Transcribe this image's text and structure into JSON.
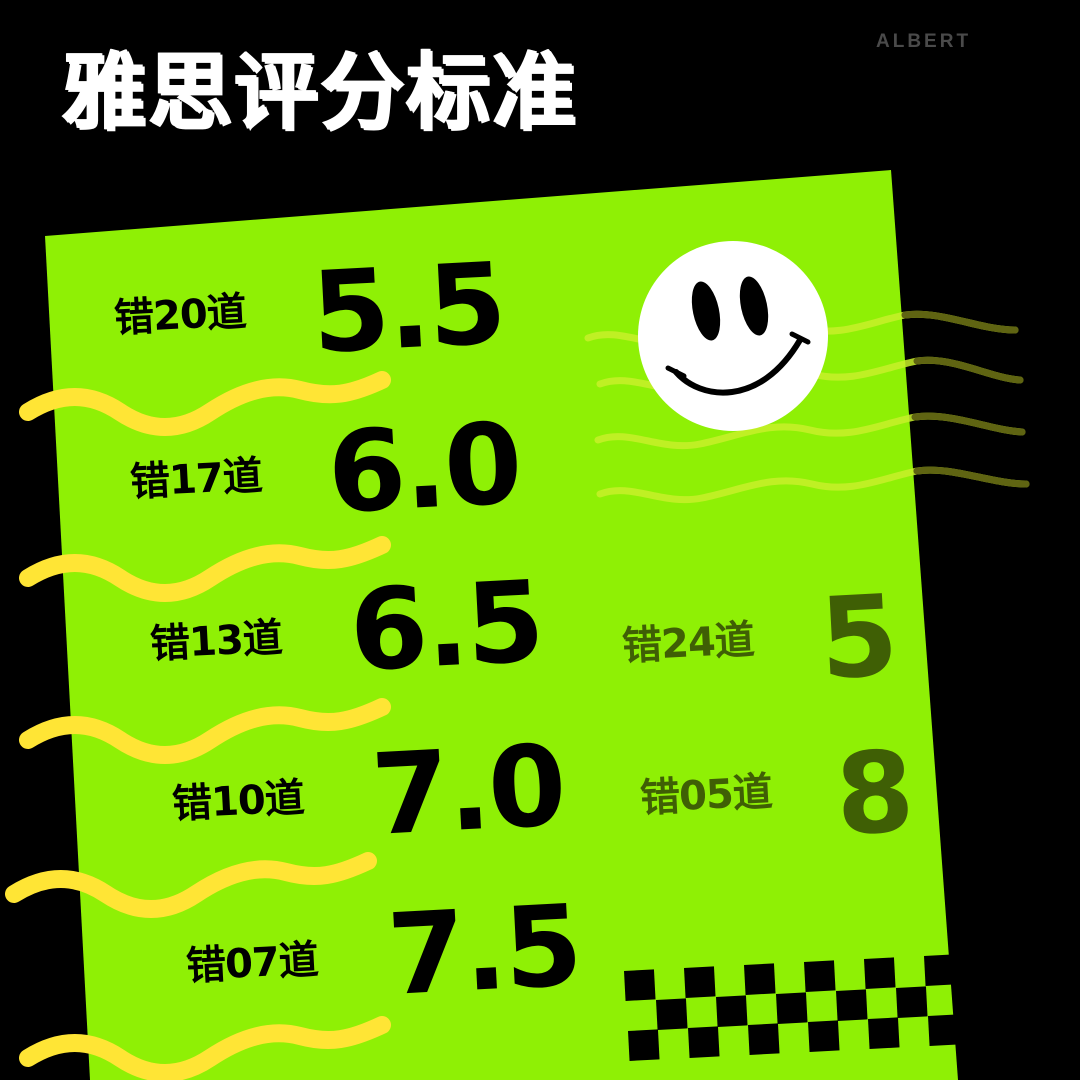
{
  "title": "雅思评分标准",
  "brand": "ALBERT",
  "rows": [
    {
      "label": "错20道",
      "score": "5.5"
    },
    {
      "label": "错17道",
      "score": "6.0"
    },
    {
      "label": "错13道",
      "score": "6.5"
    },
    {
      "label": "错10道",
      "score": "7.0"
    },
    {
      "label": "错07道",
      "score": "7.5"
    }
  ],
  "side_rows": [
    {
      "label": "错24道",
      "score": "5"
    },
    {
      "label": "错05道",
      "score": "8"
    }
  ],
  "colors": {
    "background": "#000000",
    "card": "#8ff005",
    "squiggle": "#ffe535",
    "side_text": "#3f5f05",
    "title": "#ffffff",
    "brand": "#4a4a4a"
  },
  "icons": [
    "smiley-face-icon",
    "checkerboard-pattern",
    "wavy-lines-decoration"
  ]
}
